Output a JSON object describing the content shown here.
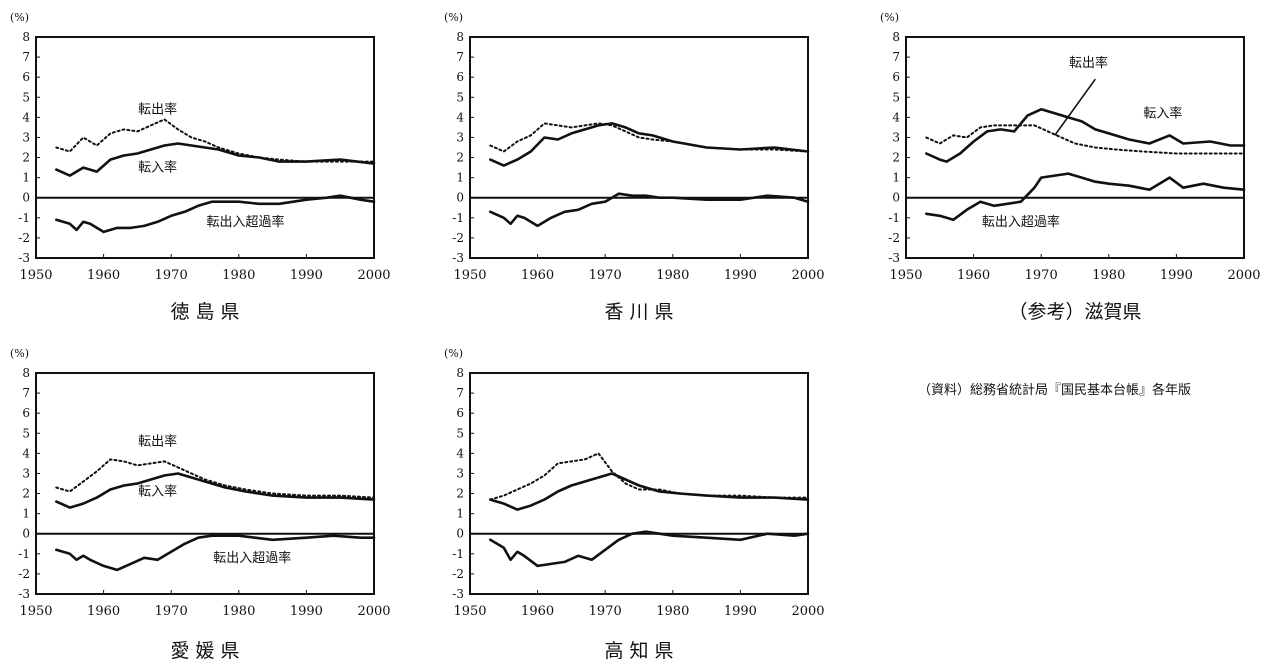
{
  "source_note": "（資料）総務省統計局『国民基本台帳』各年版",
  "chart_data": [
    {
      "type": "line",
      "title": "徳 島 県",
      "unit_label": "(%)",
      "xlim": [
        1950,
        2000
      ],
      "ylim": [
        -3,
        8
      ],
      "x_ticks": [
        1950,
        1960,
        1970,
        1980,
        1990,
        2000
      ],
      "y_ticks": [
        -3,
        -2,
        -1,
        0,
        1,
        2,
        3,
        4,
        5,
        6,
        7,
        8
      ],
      "series": [
        {
          "name": "転出率",
          "style": "dotted",
          "x": [
            1953,
            1955,
            1957,
            1959,
            1961,
            1963,
            1965,
            1967,
            1969,
            1971,
            1973,
            1975,
            1977,
            1980,
            1983,
            1986,
            1990,
            1995,
            2000
          ],
          "y": [
            2.5,
            2.3,
            3.0,
            2.6,
            3.2,
            3.4,
            3.3,
            3.6,
            3.9,
            3.4,
            3.0,
            2.8,
            2.5,
            2.2,
            2.0,
            1.9,
            1.8,
            1.8,
            1.8
          ]
        },
        {
          "name": "転入率",
          "style": "solid",
          "x": [
            1953,
            1955,
            1957,
            1959,
            1961,
            1963,
            1965,
            1967,
            1969,
            1971,
            1973,
            1975,
            1977,
            1980,
            1983,
            1986,
            1990,
            1995,
            2000
          ],
          "y": [
            1.4,
            1.1,
            1.5,
            1.3,
            1.9,
            2.1,
            2.2,
            2.4,
            2.6,
            2.7,
            2.6,
            2.5,
            2.4,
            2.1,
            2.0,
            1.8,
            1.8,
            1.9,
            1.7
          ]
        },
        {
          "name": "転出入超過率",
          "style": "solid",
          "x": [
            1953,
            1955,
            1956,
            1957,
            1958,
            1960,
            1962,
            1964,
            1966,
            1968,
            1970,
            1972,
            1974,
            1976,
            1978,
            1980,
            1983,
            1986,
            1990,
            1993,
            1995,
            1998,
            2000
          ],
          "y": [
            -1.1,
            -1.3,
            -1.6,
            -1.2,
            -1.3,
            -1.7,
            -1.5,
            -1.5,
            -1.4,
            -1.2,
            -0.9,
            -0.7,
            -0.4,
            -0.2,
            -0.2,
            -0.2,
            -0.3,
            -0.3,
            -0.1,
            0.0,
            0.1,
            -0.1,
            -0.2
          ]
        }
      ],
      "annotations": [
        {
          "text": "転出率",
          "x": 1968,
          "y": 4.2
        },
        {
          "text": "転入率",
          "x": 1968,
          "y": 1.3
        },
        {
          "text": "転出入超過率",
          "x": 1981,
          "y": -1.4
        }
      ]
    },
    {
      "type": "line",
      "title": "香 川 県",
      "unit_label": "(%)",
      "xlim": [
        1950,
        2000
      ],
      "ylim": [
        -3,
        8
      ],
      "x_ticks": [
        1950,
        1960,
        1970,
        1980,
        1990,
        2000
      ],
      "y_ticks": [
        -3,
        -2,
        -1,
        0,
        1,
        2,
        3,
        4,
        5,
        6,
        7,
        8
      ],
      "series": [
        {
          "name": "転出率",
          "style": "dotted",
          "x": [
            1953,
            1955,
            1957,
            1959,
            1961,
            1963,
            1965,
            1967,
            1969,
            1971,
            1973,
            1975,
            1977,
            1980,
            1985,
            1990,
            1995,
            2000
          ],
          "y": [
            2.6,
            2.3,
            2.8,
            3.1,
            3.7,
            3.6,
            3.5,
            3.6,
            3.7,
            3.6,
            3.3,
            3.0,
            2.9,
            2.8,
            2.5,
            2.4,
            2.4,
            2.3
          ]
        },
        {
          "name": "転入率",
          "style": "solid",
          "x": [
            1953,
            1955,
            1957,
            1959,
            1961,
            1963,
            1965,
            1967,
            1969,
            1971,
            1973,
            1975,
            1977,
            1980,
            1985,
            1990,
            1995,
            2000
          ],
          "y": [
            1.9,
            1.6,
            1.9,
            2.3,
            3.0,
            2.9,
            3.2,
            3.4,
            3.6,
            3.7,
            3.5,
            3.2,
            3.1,
            2.8,
            2.5,
            2.4,
            2.5,
            2.3
          ]
        },
        {
          "name": "転出入超過率",
          "style": "solid",
          "x": [
            1953,
            1955,
            1956,
            1957,
            1958,
            1960,
            1962,
            1964,
            1966,
            1968,
            1970,
            1972,
            1974,
            1976,
            1978,
            1980,
            1985,
            1990,
            1994,
            1998,
            2000
          ],
          "y": [
            -0.7,
            -1.0,
            -1.3,
            -0.9,
            -1.0,
            -1.4,
            -1.0,
            -0.7,
            -0.6,
            -0.3,
            -0.2,
            0.2,
            0.1,
            0.1,
            0.0,
            0.0,
            -0.1,
            -0.1,
            0.1,
            0.0,
            -0.2
          ]
        }
      ],
      "annotations": []
    },
    {
      "type": "line",
      "title": "（参考）滋賀県",
      "unit_label": "(%)",
      "xlim": [
        1950,
        2000
      ],
      "ylim": [
        -3,
        8
      ],
      "x_ticks": [
        1950,
        1960,
        1970,
        1980,
        1990,
        2000
      ],
      "y_ticks": [
        -3,
        -2,
        -1,
        0,
        1,
        2,
        3,
        4,
        5,
        6,
        7,
        8
      ],
      "series": [
        {
          "name": "転出率",
          "style": "dotted",
          "x": [
            1953,
            1955,
            1957,
            1959,
            1961,
            1963,
            1965,
            1967,
            1969,
            1971,
            1973,
            1975,
            1978,
            1981,
            1985,
            1990,
            1995,
            2000
          ],
          "y": [
            3.0,
            2.7,
            3.1,
            3.0,
            3.5,
            3.6,
            3.6,
            3.6,
            3.6,
            3.3,
            3.0,
            2.7,
            2.5,
            2.4,
            2.3,
            2.2,
            2.2,
            2.2
          ]
        },
        {
          "name": "転入率",
          "style": "solid",
          "x": [
            1953,
            1955,
            1956,
            1958,
            1960,
            1962,
            1964,
            1966,
            1968,
            1970,
            1972,
            1974,
            1976,
            1978,
            1980,
            1983,
            1986,
            1989,
            1991,
            1995,
            1998,
            2000
          ],
          "y": [
            2.2,
            1.9,
            1.8,
            2.2,
            2.8,
            3.3,
            3.4,
            3.3,
            4.1,
            4.4,
            4.2,
            4.0,
            3.8,
            3.4,
            3.2,
            2.9,
            2.7,
            3.1,
            2.7,
            2.8,
            2.6,
            2.6
          ]
        },
        {
          "name": "転出入超過率",
          "style": "solid",
          "x": [
            1953,
            1955,
            1957,
            1959,
            1961,
            1963,
            1965,
            1967,
            1969,
            1970,
            1972,
            1974,
            1976,
            1978,
            1980,
            1983,
            1986,
            1989,
            1991,
            1994,
            1997,
            2000
          ],
          "y": [
            -0.8,
            -0.9,
            -1.1,
            -0.6,
            -0.2,
            -0.4,
            -0.3,
            -0.2,
            0.5,
            1.0,
            1.1,
            1.2,
            1.0,
            0.8,
            0.7,
            0.6,
            0.4,
            1.0,
            0.5,
            0.7,
            0.5,
            0.4
          ]
        }
      ],
      "annotations": [
        {
          "text": "転出率",
          "x": 1977,
          "y": 6.5
        },
        {
          "text": "転入率",
          "x": 1988,
          "y": 4.0
        },
        {
          "text": "転出入超過率",
          "x": 1967,
          "y": -1.4
        }
      ]
    },
    {
      "type": "line",
      "title": "愛 媛 県",
      "unit_label": "(%)",
      "xlim": [
        1950,
        2000
      ],
      "ylim": [
        -3,
        8
      ],
      "x_ticks": [
        1950,
        1960,
        1970,
        1980,
        1990,
        2000
      ],
      "y_ticks": [
        -3,
        -2,
        -1,
        0,
        1,
        2,
        3,
        4,
        5,
        6,
        7,
        8
      ],
      "series": [
        {
          "name": "転出率",
          "style": "dotted",
          "x": [
            1953,
            1955,
            1957,
            1959,
            1961,
            1963,
            1965,
            1967,
            1969,
            1971,
            1973,
            1975,
            1978,
            1981,
            1985,
            1990,
            1995,
            2000
          ],
          "y": [
            2.3,
            2.1,
            2.6,
            3.1,
            3.7,
            3.6,
            3.4,
            3.5,
            3.6,
            3.3,
            3.0,
            2.7,
            2.4,
            2.2,
            2.0,
            1.9,
            1.9,
            1.8
          ]
        },
        {
          "name": "転入率",
          "style": "solid",
          "x": [
            1953,
            1955,
            1957,
            1959,
            1961,
            1963,
            1965,
            1967,
            1969,
            1971,
            1973,
            1975,
            1978,
            1981,
            1985,
            1990,
            1995,
            2000
          ],
          "y": [
            1.6,
            1.3,
            1.5,
            1.8,
            2.2,
            2.4,
            2.5,
            2.7,
            2.9,
            3.0,
            2.8,
            2.6,
            2.3,
            2.1,
            1.9,
            1.8,
            1.8,
            1.7
          ]
        },
        {
          "name": "転出入超過率",
          "style": "solid",
          "x": [
            1953,
            1955,
            1956,
            1957,
            1958,
            1960,
            1962,
            1964,
            1966,
            1968,
            1970,
            1972,
            1974,
            1976,
            1978,
            1980,
            1985,
            1990,
            1994,
            1998,
            2000
          ],
          "y": [
            -0.8,
            -1.0,
            -1.3,
            -1.1,
            -1.3,
            -1.6,
            -1.8,
            -1.5,
            -1.2,
            -1.3,
            -0.9,
            -0.5,
            -0.2,
            -0.1,
            -0.1,
            -0.1,
            -0.3,
            -0.2,
            -0.1,
            -0.2,
            -0.2
          ]
        }
      ],
      "annotations": [
        {
          "text": "転出率",
          "x": 1968,
          "y": 4.4
        },
        {
          "text": "転入率",
          "x": 1968,
          "y": 1.9
        },
        {
          "text": "転出入超過率",
          "x": 1982,
          "y": -1.4
        }
      ]
    },
    {
      "type": "line",
      "title": "高 知 県",
      "unit_label": "(%)",
      "xlim": [
        1950,
        2000
      ],
      "ylim": [
        -3,
        8
      ],
      "x_ticks": [
        1950,
        1960,
        1970,
        1980,
        1990,
        2000
      ],
      "y_ticks": [
        -3,
        -2,
        -1,
        0,
        1,
        2,
        3,
        4,
        5,
        6,
        7,
        8
      ],
      "series": [
        {
          "name": "転出率",
          "style": "dotted",
          "x": [
            1953,
            1955,
            1957,
            1959,
            1961,
            1963,
            1965,
            1967,
            1969,
            1971,
            1973,
            1975,
            1978,
            1981,
            1985,
            1990,
            1995,
            2000
          ],
          "y": [
            1.7,
            1.9,
            2.2,
            2.5,
            2.9,
            3.5,
            3.6,
            3.7,
            4.0,
            3.1,
            2.5,
            2.2,
            2.2,
            2.0,
            1.9,
            1.9,
            1.8,
            1.8
          ]
        },
        {
          "name": "転入率",
          "style": "solid",
          "x": [
            1953,
            1955,
            1957,
            1959,
            1961,
            1963,
            1965,
            1967,
            1969,
            1971,
            1973,
            1975,
            1978,
            1981,
            1985,
            1990,
            1995,
            2000
          ],
          "y": [
            1.7,
            1.5,
            1.2,
            1.4,
            1.7,
            2.1,
            2.4,
            2.6,
            2.8,
            3.0,
            2.7,
            2.4,
            2.1,
            2.0,
            1.9,
            1.8,
            1.8,
            1.7
          ]
        },
        {
          "name": "転出入超過率",
          "style": "solid",
          "x": [
            1953,
            1955,
            1956,
            1957,
            1958,
            1960,
            1962,
            1964,
            1966,
            1968,
            1970,
            1972,
            1974,
            1976,
            1978,
            1980,
            1985,
            1990,
            1994,
            1998,
            2000
          ],
          "y": [
            -0.3,
            -0.7,
            -1.3,
            -0.9,
            -1.1,
            -1.6,
            -1.5,
            -1.4,
            -1.1,
            -1.3,
            -0.8,
            -0.3,
            0.0,
            0.1,
            0.0,
            -0.1,
            -0.2,
            -0.3,
            0.0,
            -0.1,
            0.0
          ]
        }
      ],
      "annotations": []
    }
  ]
}
